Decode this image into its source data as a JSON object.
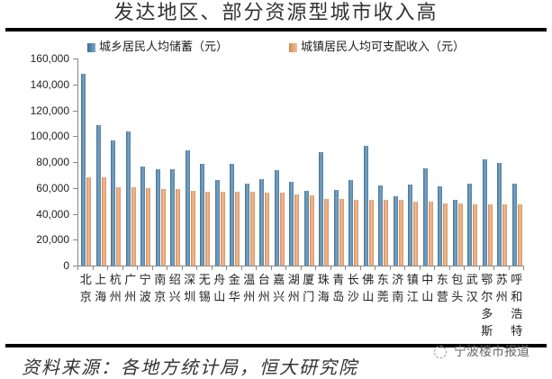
{
  "title": "发达地区、部分资源型城市收入高",
  "source": "资料来源：各地方统计局，恒大研究院",
  "watermark": "宁波楼市报道",
  "colors": {
    "series_savings": "#4d7ea3",
    "series_income": "#e3a074",
    "rule": "#000000"
  },
  "legend": [
    {
      "label": "城乡居民人均储蓄（元）",
      "color": "#4d7ea3"
    },
    {
      "label": "城镇居民人均可支配收入（元）",
      "color": "#e3a074"
    }
  ],
  "y_ticks": [
    "0",
    "20,000",
    "40,000",
    "60,000",
    "80,000",
    "100,000",
    "120,000",
    "140,000",
    "160,000"
  ],
  "chart_data": {
    "type": "bar",
    "title": "发达地区、部分资源型城市收入高",
    "xlabel": "",
    "ylabel": "",
    "ylim": [
      0,
      160000
    ],
    "legend_position": "top",
    "grid": false,
    "categories": [
      "北京",
      "上海",
      "杭州",
      "广州",
      "宁波",
      "南京",
      "绍兴",
      "深圳",
      "无锡",
      "舟山",
      "金华",
      "温州",
      "台州",
      "嘉兴",
      "湖州",
      "厦门",
      "珠海",
      "青岛",
      "长沙",
      "佛山",
      "东莞",
      "济南",
      "镇江",
      "中山",
      "东营",
      "包头",
      "武汉",
      "鄂尔多斯",
      "苏州",
      "呼和浩特"
    ],
    "series": [
      {
        "name": "城乡居民人均储蓄（元）",
        "values": [
          148400,
          108600,
          96800,
          103600,
          76500,
          74400,
          74400,
          89400,
          78800,
          66300,
          78800,
          63500,
          66900,
          73700,
          64400,
          58000,
          87900,
          58600,
          66300,
          92200,
          62100,
          53800,
          62800,
          75300,
          61400,
          50900,
          63500,
          82200,
          79400,
          63500
        ]
      },
      {
        "name": "城镇居民人均可支配收入（元）",
        "values": [
          67900,
          68000,
          60700,
          60700,
          60000,
          59300,
          59300,
          57800,
          57400,
          57400,
          56800,
          56800,
          56100,
          56100,
          54700,
          54300,
          51700,
          51700,
          50900,
          50900,
          50900,
          50900,
          49500,
          49500,
          48100,
          48100,
          47400,
          47400,
          47400,
          47400
        ]
      }
    ]
  }
}
